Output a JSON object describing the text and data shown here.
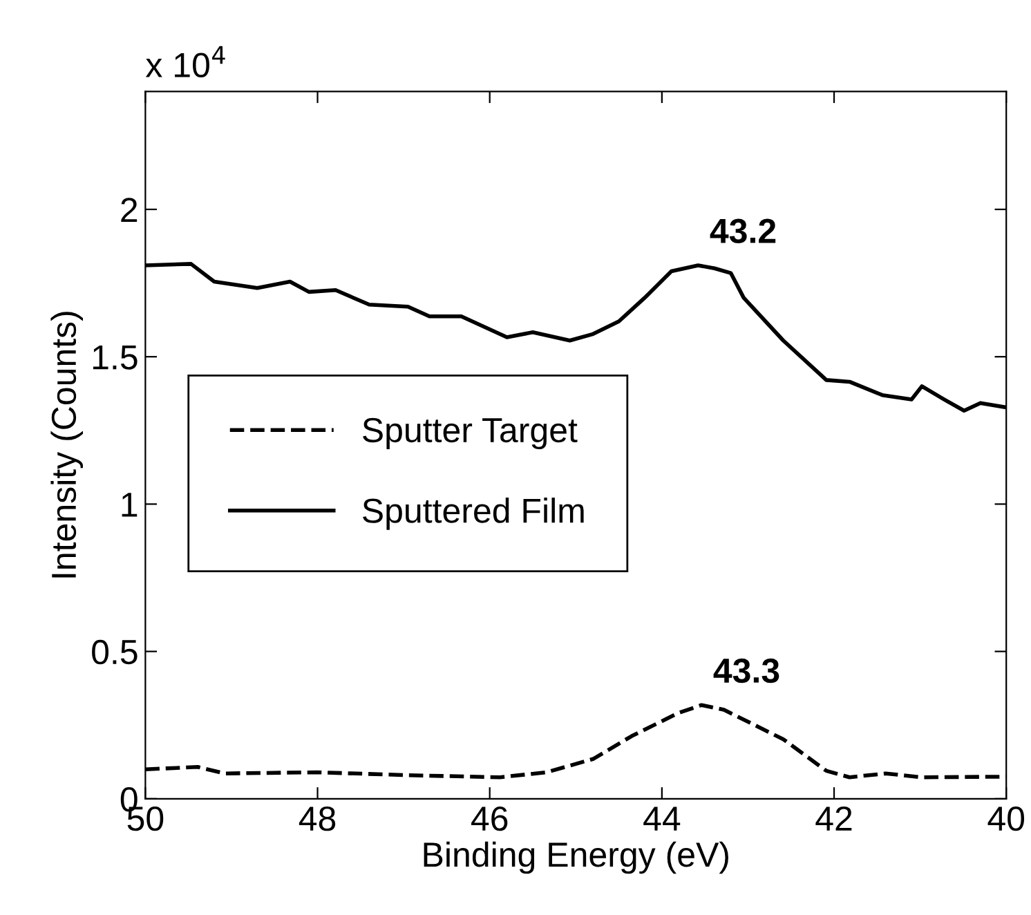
{
  "chart_data": {
    "type": "line",
    "xlabel": "Binding Energy (eV)",
    "ylabel": "Intensity (Counts)",
    "xlim": [
      50,
      40
    ],
    "xticks": [
      50,
      48,
      46,
      44,
      42,
      40
    ],
    "ylim": [
      0,
      2.4
    ],
    "yticks": [
      0,
      0.5,
      1,
      1.5,
      2
    ],
    "grid": false,
    "legend": "left",
    "marker": "none",
    "annotations": [
      "x 10$^{4}$",
      {
        "text": "43.2",
        "x": 43.58,
        "y": 1.81
      },
      {
        "text": "43.3",
        "x": 43.54,
        "y": 0.318
      }
    ],
    "series": [
      {
        "name": "Sputter Target",
        "color": "#000000",
        "line_style": "dashed",
        "x": [
          50,
          49.39,
          49.08,
          48.0,
          46.95,
          45.88,
          45.34,
          44.8,
          44.35,
          43.81,
          43.54,
          43.28,
          42.59,
          42.09,
          41.82,
          41.4,
          40.98,
          40
        ],
        "values": [
          0.1,
          0.108,
          0.086,
          0.09,
          0.08,
          0.073,
          0.09,
          0.135,
          0.213,
          0.291,
          0.318,
          0.302,
          0.202,
          0.095,
          0.073,
          0.086,
          0.073,
          0.075
        ]
      },
      {
        "name": "Sputtered Film",
        "color": "#000000",
        "line_style": "solid",
        "x": [
          50,
          49.47,
          49.2,
          48.7,
          48.32,
          48.1,
          47.79,
          47.4,
          46.95,
          46.7,
          46.33,
          45.8,
          45.5,
          45.07,
          44.8,
          44.5,
          44.2,
          43.89,
          43.58,
          43.39,
          43.2,
          43.05,
          42.59,
          42.09,
          41.82,
          41.44,
          41.1,
          40.98,
          40.72,
          40.49,
          40.3,
          40
        ],
        "values": [
          1.81,
          1.815,
          1.755,
          1.733,
          1.755,
          1.72,
          1.726,
          1.677,
          1.67,
          1.637,
          1.637,
          1.566,
          1.583,
          1.555,
          1.577,
          1.62,
          1.7,
          1.79,
          1.81,
          1.8,
          1.784,
          1.7,
          1.555,
          1.421,
          1.415,
          1.37,
          1.355,
          1.4,
          1.355,
          1.317,
          1.343,
          1.328
        ]
      }
    ]
  }
}
